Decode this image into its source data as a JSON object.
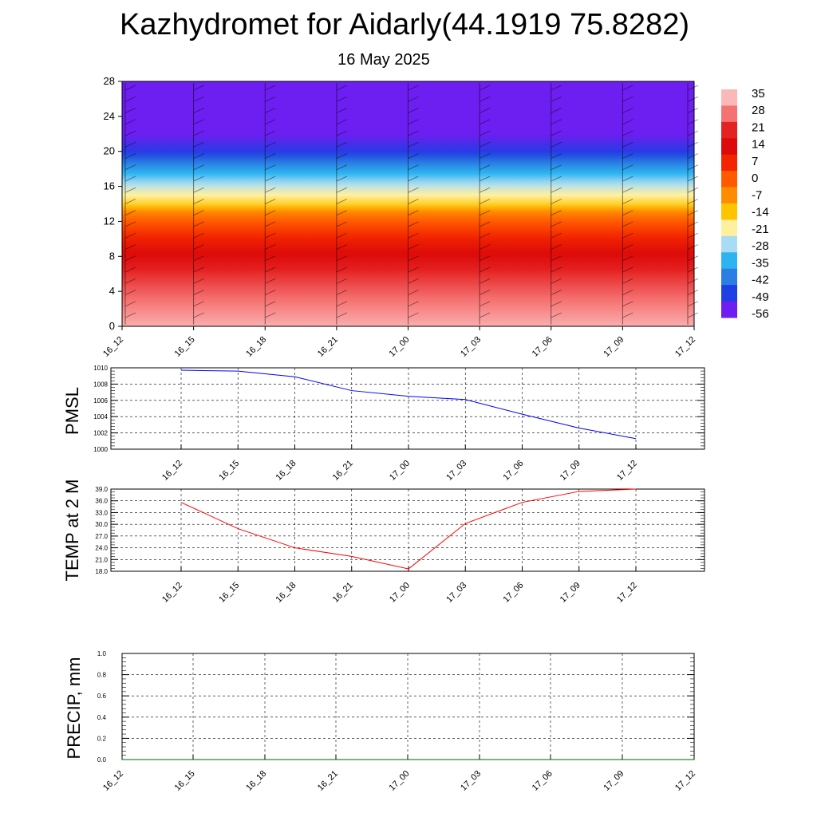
{
  "header": {
    "title": "Kazhydromet for Aidarly(44.1919 75.8282)",
    "subtitle": "16 May 2025"
  },
  "colors": {
    "pmsl_line": "#0000ff",
    "temp_line": "#ff0000",
    "precip_line": "#006400",
    "grid": "#000000"
  },
  "chart_data": [
    {
      "type": "heatmap",
      "name": "temperature-cross-section",
      "x_ticks": [
        "16_12",
        "16_15",
        "16_18",
        "16_21",
        "17_00",
        "17_03",
        "17_06",
        "17_09",
        "17_12"
      ],
      "y_ticks": [
        0,
        4,
        8,
        12,
        16,
        20,
        24,
        28
      ],
      "ylim": [
        0,
        28
      ],
      "colorbar_labels": [
        "35",
        "28",
        "21",
        "14",
        "7",
        "0",
        "-7",
        "-14",
        "-21",
        "-28",
        "-35",
        "-42",
        "-49",
        "-56"
      ],
      "colorbar_colors": [
        "#fbb8b8",
        "#f57272",
        "#e52222",
        "#dc0a0a",
        "#f32500",
        "#ff5a00",
        "#ff8c00",
        "#ffc400",
        "#fff0a0",
        "#a8dcf4",
        "#2db4f0",
        "#2b7fe2",
        "#1e3fe3",
        "#6d1ef0"
      ],
      "temperature_profile": [
        {
          "level": 0,
          "temp": 34
        },
        {
          "level": 2,
          "temp": 30
        },
        {
          "level": 4,
          "temp": 26
        },
        {
          "level": 6,
          "temp": 22
        },
        {
          "level": 8,
          "temp": 15
        },
        {
          "level": 10,
          "temp": 8
        },
        {
          "level": 12,
          "temp": 0
        },
        {
          "level": 13,
          "temp": -6
        },
        {
          "level": 14,
          "temp": -16
        },
        {
          "level": 16,
          "temp": -26
        },
        {
          "level": 18,
          "temp": -38
        },
        {
          "level": 20,
          "temp": -50
        },
        {
          "level": 22,
          "temp": -56
        },
        {
          "level": 28,
          "temp": -60
        }
      ],
      "grid": false
    },
    {
      "type": "line",
      "name": "pmsl",
      "ylabel": "PMSL",
      "categories": [
        "16_12",
        "16_15",
        "16_18",
        "16_21",
        "17_00",
        "17_03",
        "17_06",
        "17_09",
        "17_12"
      ],
      "y_ticks": [
        "1000",
        "1002",
        "1004",
        "1006",
        "1008",
        "1010"
      ],
      "ylim": [
        1000,
        1010
      ],
      "series": [
        {
          "values": [
            1009.7,
            1009.6,
            1008.9,
            1007.2,
            1006.5,
            1006.1,
            1004.3,
            1002.6,
            1001.3
          ]
        }
      ],
      "grid": true
    },
    {
      "type": "line",
      "name": "temp-2m",
      "ylabel": "TEMP at 2 M",
      "categories": [
        "16_12",
        "16_15",
        "16_18",
        "16_21",
        "17_00",
        "17_03",
        "17_06",
        "17_09",
        "17_12"
      ],
      "y_ticks": [
        "18.0",
        "21.0",
        "24.0",
        "27.0",
        "30.0",
        "33.0",
        "36.0",
        "39.0"
      ],
      "ylim": [
        18,
        39
      ],
      "series": [
        {
          "values": [
            35.6,
            28.9,
            24.0,
            21.8,
            18.6,
            30.2,
            35.6,
            38.4,
            39.0
          ]
        }
      ],
      "grid": true
    },
    {
      "type": "line",
      "name": "precip",
      "ylabel": "PRECIP, mm",
      "x_ticks": [
        "16_12",
        "16_15",
        "16_18",
        "16_21",
        "17_00",
        "17_03",
        "17_06",
        "17_09",
        "17_12"
      ],
      "y_ticks": [
        "0.0",
        "0.2",
        "0.4",
        "0.6",
        "0.8",
        "1.0"
      ],
      "ylim": [
        0,
        1
      ],
      "series": [
        {
          "values": [
            0,
            0,
            0,
            0,
            0,
            0,
            0,
            0,
            0
          ]
        }
      ],
      "grid": true
    }
  ]
}
